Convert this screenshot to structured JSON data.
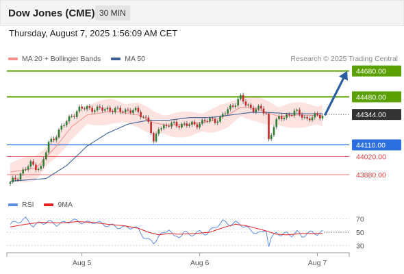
{
  "header": {
    "title": "Dow Jones (CME)",
    "timeframe": "30 MIN"
  },
  "timestamp": "Thursday, August 7, 2025 1:56:09 AM CET",
  "legend": {
    "ma20": {
      "label": "MA 20 + Bollinger Bands",
      "color": "#f4908c"
    },
    "ma50": {
      "label": "MA 50",
      "color": "#3b5e96"
    }
  },
  "credit": "Research © 2025 Trading Central",
  "rsi_legend": {
    "rsi": {
      "label": "RSI",
      "color": "#5b8de0"
    },
    "ma9": {
      "label": "9MA",
      "color": "#e02020"
    }
  },
  "chart_data": [
    {
      "type": "candlestick",
      "title": "Dow Jones (CME)",
      "ylim": [
        43790,
        44720
      ],
      "x_ticks": [
        {
          "label": "Aug 5",
          "at": 28
        },
        {
          "label": "Aug 6",
          "at": 74
        },
        {
          "label": "Aug 7",
          "at": 120
        }
      ],
      "bars_count": 123,
      "last_price": {
        "label": "44344.00",
        "value": 44344,
        "color": "#333333"
      },
      "levels": [
        {
          "label": "44680.00",
          "value": 44680,
          "kind": "resistance",
          "color": "#5aa000"
        },
        {
          "label": "44480.00",
          "value": 44480,
          "kind": "resistance",
          "color": "#5aa000"
        },
        {
          "label": "44110.00",
          "value": 44110,
          "kind": "pivot",
          "color": "#2b6fe0"
        },
        {
          "label": "44020.00",
          "value": 44020,
          "kind": "support",
          "color": "#e04040"
        },
        {
          "label": "43880.00",
          "value": 43880,
          "kind": "support",
          "color": "#e04040"
        }
      ],
      "forecast_arrow": {
        "from": 44344,
        "to": 44680,
        "color": "#2b5da0"
      },
      "close_path": [
        [
          0,
          43810
        ],
        [
          4,
          43890
        ],
        [
          8,
          43960
        ],
        [
          12,
          43930
        ],
        [
          15,
          44120
        ],
        [
          20,
          44240
        ],
        [
          24,
          44340
        ],
        [
          27,
          44380
        ],
        [
          30,
          44400
        ],
        [
          34,
          44380
        ],
        [
          38,
          44390
        ],
        [
          42,
          44370
        ],
        [
          46,
          44380
        ],
        [
          50,
          44360
        ],
        [
          54,
          44300
        ],
        [
          56,
          44110
        ],
        [
          58,
          44250
        ],
        [
          62,
          44260
        ],
        [
          66,
          44270
        ],
        [
          70,
          44260
        ],
        [
          74,
          44280
        ],
        [
          78,
          44300
        ],
        [
          82,
          44310
        ],
        [
          85,
          44380
        ],
        [
          88,
          44440
        ],
        [
          90,
          44470
        ],
        [
          92,
          44420
        ],
        [
          95,
          44390
        ],
        [
          98,
          44380
        ],
        [
          100,
          44350
        ],
        [
          101,
          44150
        ],
        [
          103,
          44260
        ],
        [
          105,
          44310
        ],
        [
          108,
          44340
        ],
        [
          111,
          44360
        ],
        [
          114,
          44340
        ],
        [
          116,
          44310
        ],
        [
          118,
          44320
        ],
        [
          122,
          44344
        ]
      ],
      "ma20_path": [
        [
          0,
          43900
        ],
        [
          10,
          43930
        ],
        [
          18,
          44100
        ],
        [
          24,
          44250
        ],
        [
          30,
          44340
        ],
        [
          40,
          44370
        ],
        [
          50,
          44340
        ],
        [
          56,
          44280
        ],
        [
          62,
          44260
        ],
        [
          70,
          44270
        ],
        [
          78,
          44290
        ],
        [
          85,
          44340
        ],
        [
          90,
          44400
        ],
        [
          96,
          44390
        ],
        [
          100,
          44360
        ],
        [
          105,
          44330
        ],
        [
          112,
          44340
        ],
        [
          122,
          44335
        ]
      ],
      "ma50_path": [
        [
          0,
          43830
        ],
        [
          14,
          43850
        ],
        [
          22,
          43950
        ],
        [
          30,
          44100
        ],
        [
          38,
          44200
        ],
        [
          46,
          44270
        ],
        [
          54,
          44300
        ],
        [
          62,
          44300
        ],
        [
          70,
          44320
        ],
        [
          78,
          44320
        ],
        [
          86,
          44340
        ],
        [
          94,
          44360
        ],
        [
          100,
          44360
        ],
        [
          110,
          44350
        ],
        [
          122,
          44350
        ]
      ],
      "bb_width": 90
    },
    {
      "type": "line",
      "title": "RSI",
      "ylim": [
        20,
        80
      ],
      "y_ticks": [
        70,
        50,
        30
      ],
      "series": [
        {
          "name": "RSI",
          "color": "#5b8de0",
          "points": [
            [
              0,
              62
            ],
            [
              3,
              66
            ],
            [
              6,
              70
            ],
            [
              9,
              60
            ],
            [
              12,
              64
            ],
            [
              15,
              66
            ],
            [
              18,
              62
            ],
            [
              21,
              64
            ],
            [
              24,
              68
            ],
            [
              27,
              66
            ],
            [
              30,
              64
            ],
            [
              33,
              66
            ],
            [
              36,
              62
            ],
            [
              39,
              60
            ],
            [
              42,
              58
            ],
            [
              45,
              57
            ],
            [
              48,
              58
            ],
            [
              50,
              54
            ],
            [
              52,
              44
            ],
            [
              54,
              38
            ],
            [
              56,
              34
            ],
            [
              58,
              44
            ],
            [
              60,
              48
            ],
            [
              62,
              56
            ],
            [
              64,
              42
            ],
            [
              66,
              44
            ],
            [
              68,
              50
            ],
            [
              70,
              46
            ],
            [
              72,
              48
            ],
            [
              74,
              50
            ],
            [
              77,
              48
            ],
            [
              80,
              58
            ],
            [
              83,
              66
            ],
            [
              86,
              62
            ],
            [
              88,
              64
            ],
            [
              90,
              62
            ],
            [
              92,
              58
            ],
            [
              94,
              52
            ],
            [
              96,
              50
            ],
            [
              98,
              48
            ],
            [
              100,
              54
            ],
            [
              101,
              30
            ],
            [
              102,
              40
            ],
            [
              104,
              50
            ],
            [
              106,
              46
            ],
            [
              108,
              48
            ],
            [
              110,
              46
            ],
            [
              112,
              50
            ],
            [
              114,
              44
            ],
            [
              116,
              48
            ],
            [
              118,
              50
            ],
            [
              120,
              48
            ],
            [
              122,
              50
            ]
          ]
        },
        {
          "name": "9MA",
          "color": "#e02020",
          "points": [
            [
              0,
              58
            ],
            [
              6,
              62
            ],
            [
              12,
              65
            ],
            [
              20,
              64
            ],
            [
              26,
              66
            ],
            [
              32,
              65
            ],
            [
              38,
              62
            ],
            [
              44,
              60
            ],
            [
              50,
              56
            ],
            [
              54,
              50
            ],
            [
              58,
              46
            ],
            [
              62,
              48
            ],
            [
              66,
              47
            ],
            [
              72,
              48
            ],
            [
              78,
              50
            ],
            [
              84,
              58
            ],
            [
              88,
              62
            ],
            [
              92,
              60
            ],
            [
              96,
              56
            ],
            [
              100,
              52
            ],
            [
              104,
              47
            ],
            [
              108,
              46
            ],
            [
              114,
              48
            ],
            [
              122,
              48
            ]
          ]
        }
      ]
    }
  ]
}
